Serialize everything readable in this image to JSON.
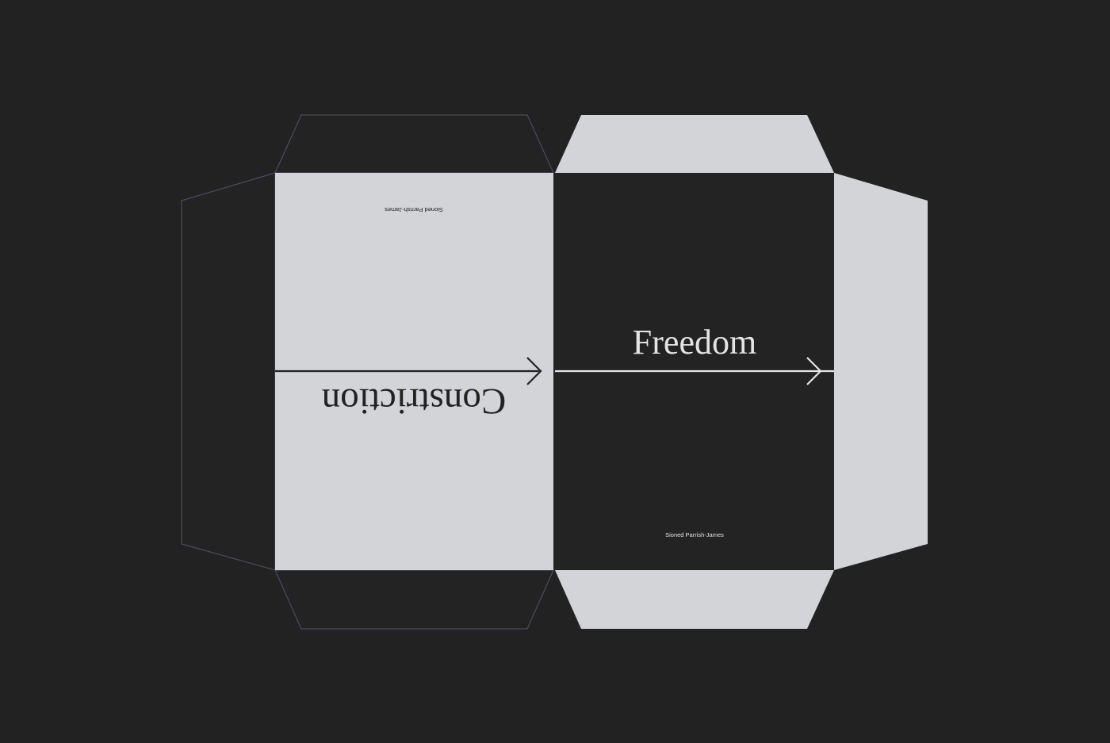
{
  "colors": {
    "background": "#222222",
    "light_panel": "#D3D4D7",
    "dark_panel": "#232323",
    "outline": "#4E4A5E",
    "dark_text": "#222222",
    "light_text": "#E4E4E6"
  },
  "left_cover": {
    "title": "Constriction",
    "author": "Sioned Parrish-James"
  },
  "right_cover": {
    "title": "Freedom",
    "author": "Sioned Parrish-James"
  },
  "icons": {
    "left_arrow": "arrow-right-icon",
    "right_arrow": "arrow-right-icon"
  }
}
